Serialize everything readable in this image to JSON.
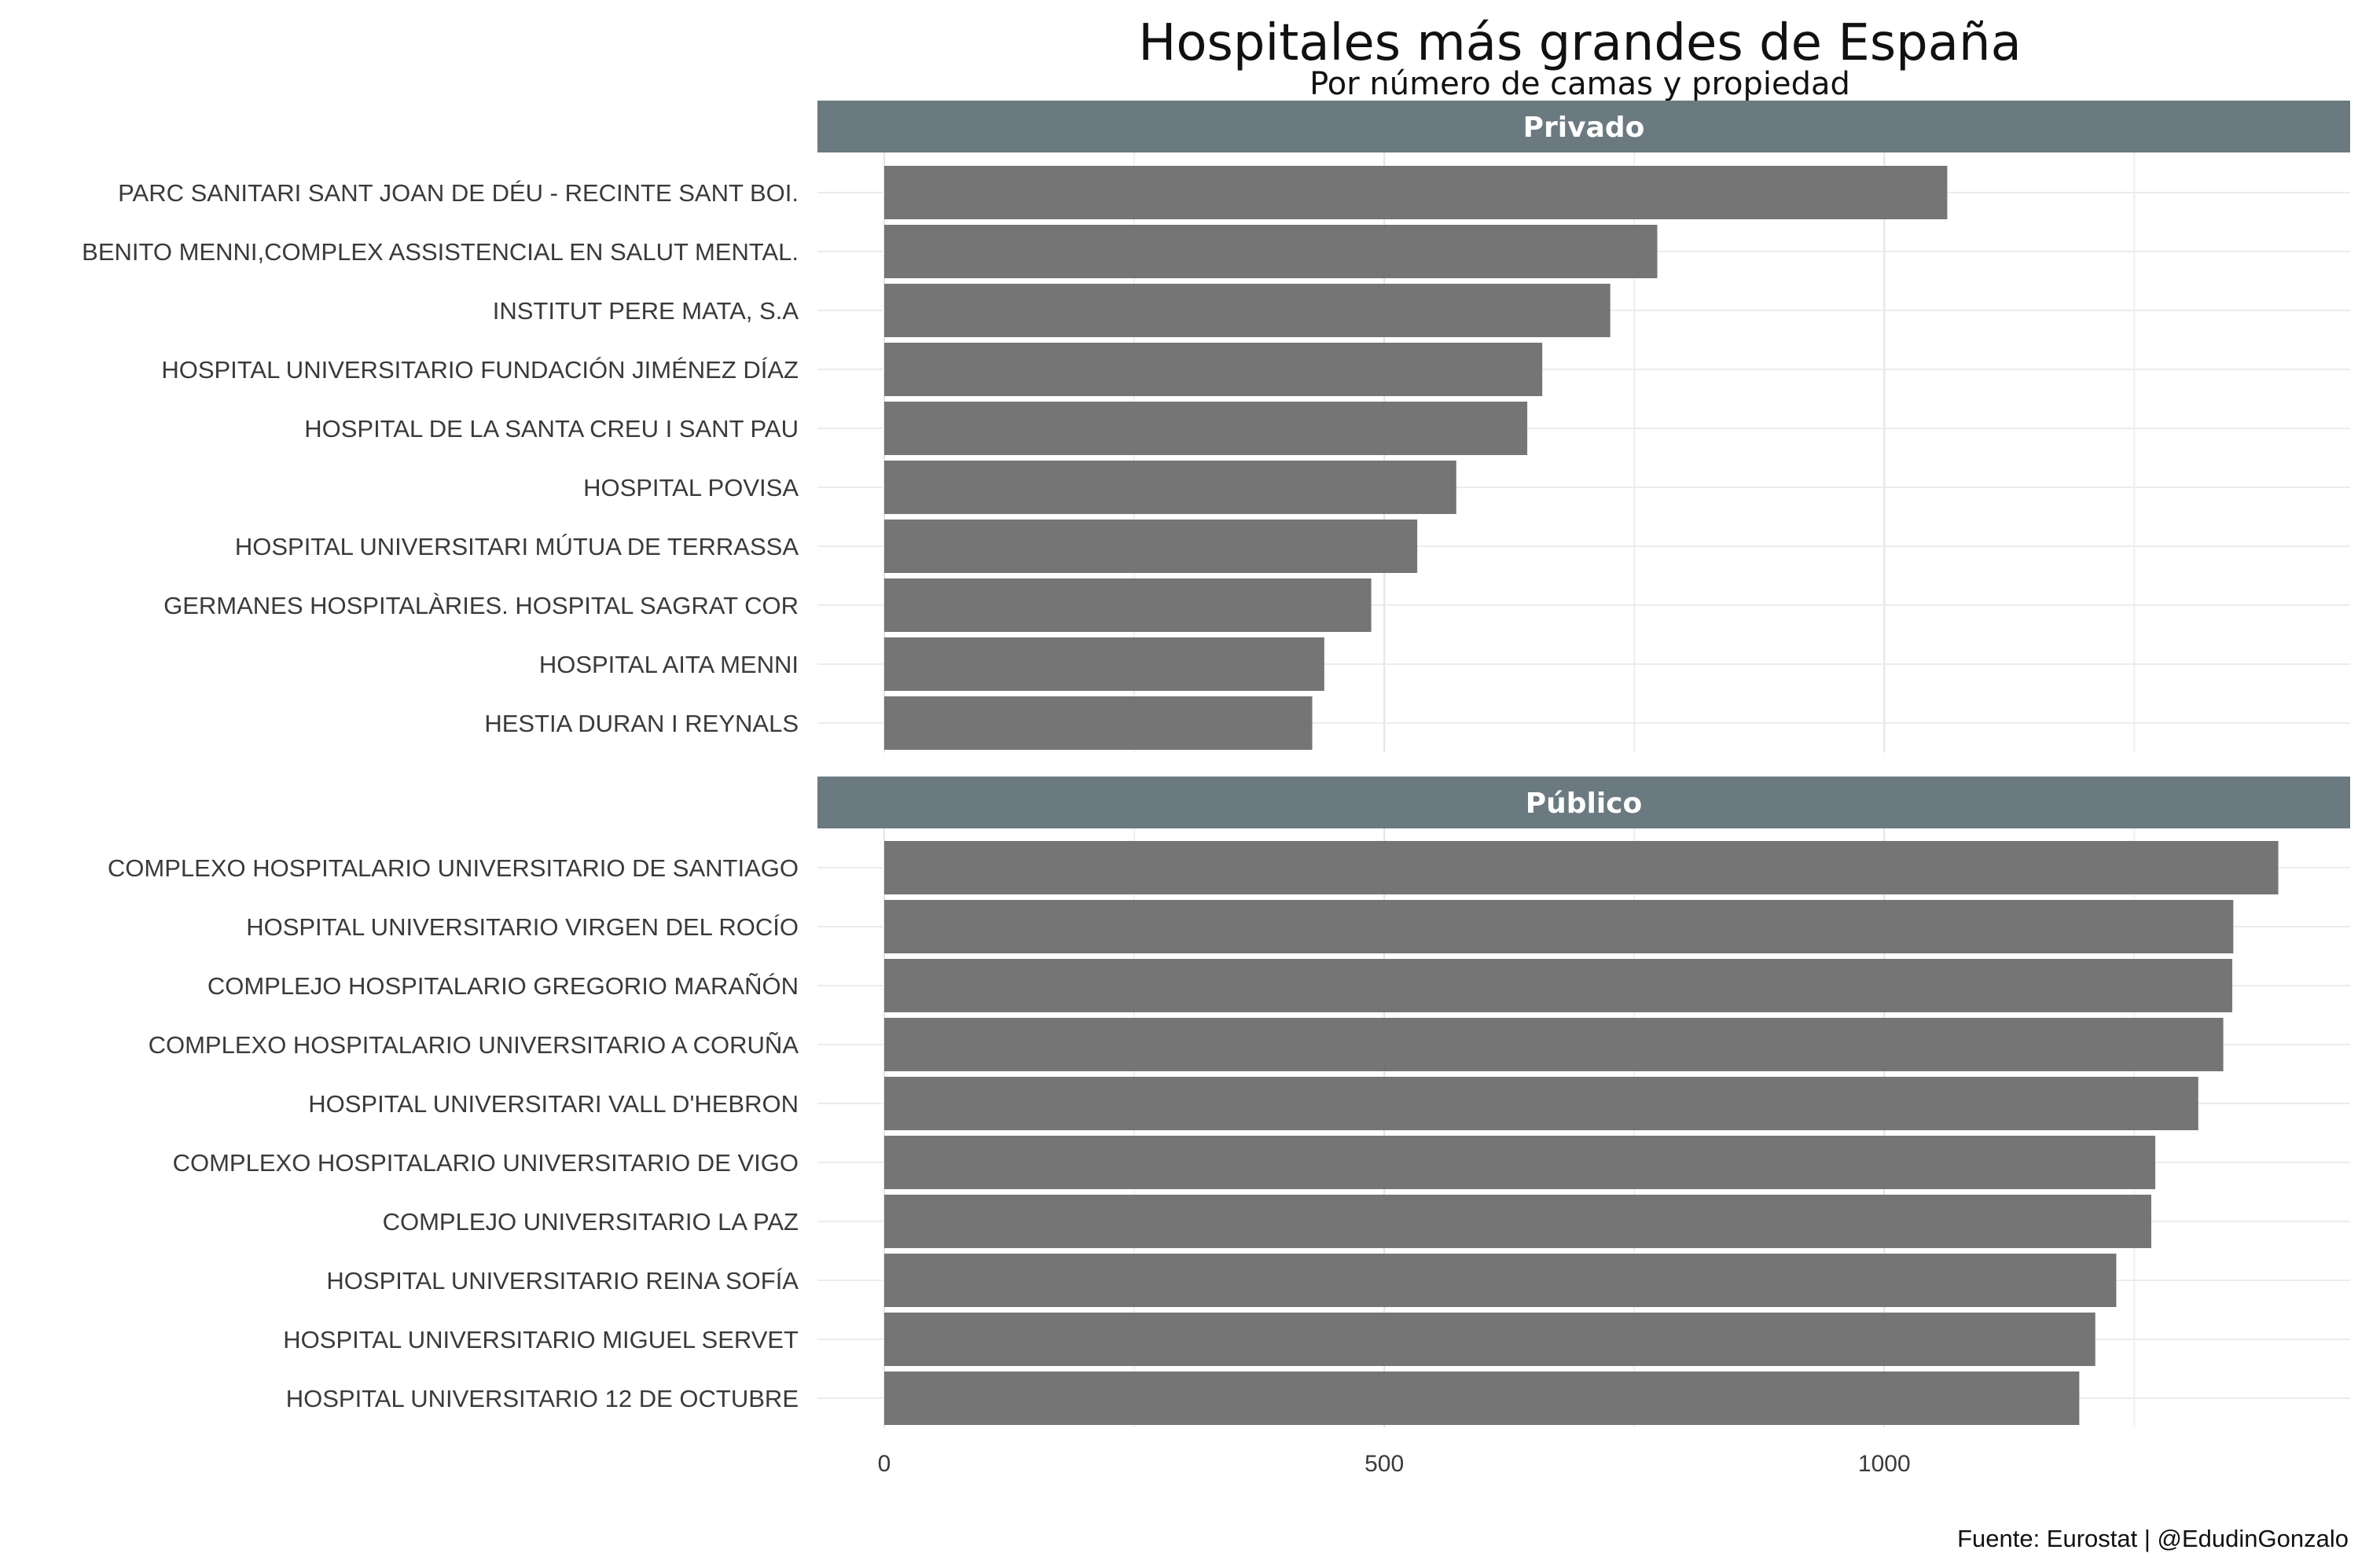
{
  "chart_data": {
    "type": "bar",
    "orientation": "horizontal",
    "title": "Hospitales más grandes de España",
    "subtitle": "Por número de camas y propiedad",
    "caption": "Fuente: Eurostat | @EdudinGonzalo",
    "xlim": [
      0,
      1460
    ],
    "x_ticks": [
      0,
      500,
      1000
    ],
    "x_tick_labels": [
      "0",
      "500",
      "1000"
    ],
    "grid": true,
    "bar_color": "#6e6e6e",
    "strip_color": "#6b7a80",
    "panels": [
      {
        "name": "Privado",
        "categories": [
          "PARC SANITARI SANT JOAN DE DÉU - RECINTE SANT BOI.",
          "BENITO MENNI,COMPLEX ASSISTENCIAL EN SALUT MENTAL.",
          "INSTITUT PERE MATA, S.A",
          "HOSPITAL UNIVERSITARIO FUNDACIÓN JIMÉNEZ DÍAZ",
          "HOSPITAL DE LA SANTA CREU I SANT PAU",
          "HOSPITAL POVISA",
          "HOSPITAL UNIVERSITARI MÚTUA DE TERRASSA",
          "GERMANES HOSPITALÀRIES. HOSPITAL SAGRAT COR",
          "HOSPITAL AITA MENNI",
          "HESTIA DURAN I REYNALS"
        ],
        "values": [
          1063,
          773,
          726,
          658,
          643,
          572,
          533,
          487,
          440,
          428
        ]
      },
      {
        "name": "Público",
        "categories": [
          "COMPLEXO HOSPITALARIO UNIVERSITARIO DE SANTIAGO",
          "HOSPITAL UNIVERSITARIO VIRGEN DEL ROCÍO",
          "COMPLEJO HOSPITALARIO GREGORIO MARAÑÓN",
          "COMPLEXO HOSPITALARIO UNIVERSITARIO A CORUÑA",
          "HOSPITAL UNIVERSITARI VALL D'HEBRON",
          "COMPLEXO HOSPITALARIO UNIVERSITARIO DE VIGO",
          "COMPLEJO UNIVERSITARIO LA PAZ",
          "HOSPITAL UNIVERSITARIO REINA SOFÍA",
          "HOSPITAL UNIVERSITARIO MIGUEL SERVET",
          "HOSPITAL UNIVERSITARIO 12 DE OCTUBRE"
        ],
        "values": [
          1394,
          1349,
          1348,
          1339,
          1314,
          1271,
          1267,
          1232,
          1211,
          1195
        ]
      }
    ]
  }
}
